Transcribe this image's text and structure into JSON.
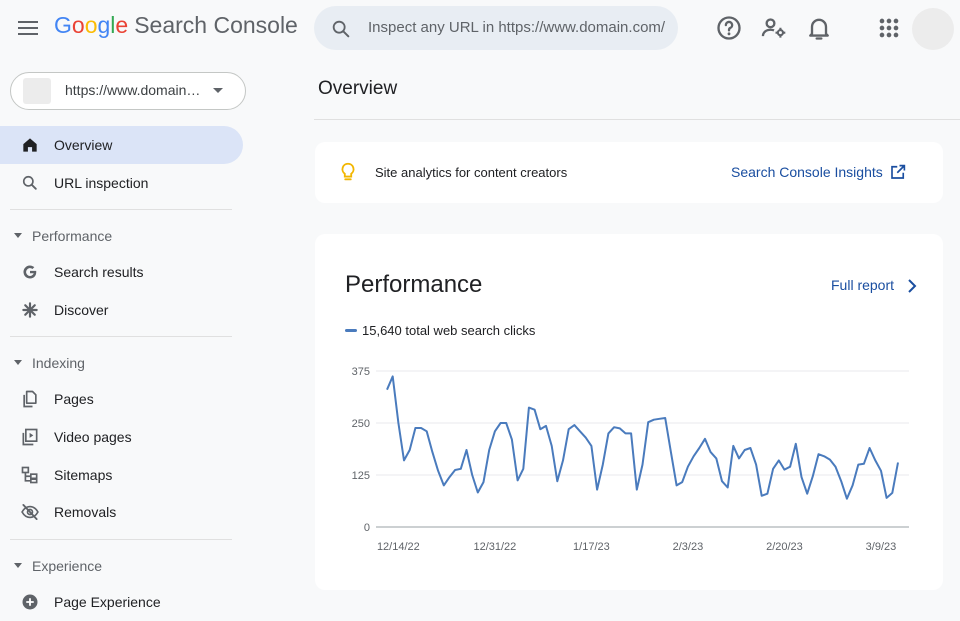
{
  "app": {
    "logo_letters": [
      "G",
      "o",
      "o",
      "g",
      "l",
      "e"
    ],
    "product_name": "Search Console",
    "search_placeholder": "Inspect any URL in https://www.domain.com/"
  },
  "header_icons": [
    "help-icon",
    "manage-users-icon",
    "notifications-icon",
    "apps-grid-icon"
  ],
  "sidebar": {
    "property_url": "https://www.domain…",
    "overview": "Overview",
    "url_inspection": "URL inspection",
    "sections": {
      "performance": {
        "label": "Performance",
        "items": [
          "Search results",
          "Discover"
        ]
      },
      "indexing": {
        "label": "Indexing",
        "items": [
          "Pages",
          "Video pages",
          "Sitemaps",
          "Removals"
        ]
      },
      "experience": {
        "label": "Experience",
        "items": [
          "Page Experience"
        ]
      }
    }
  },
  "main": {
    "title": "Overview",
    "insights_text": "Site analytics for content creators",
    "insights_link": "Search Console Insights",
    "performance_title": "Performance",
    "full_report": "Full report",
    "legend": "15,640 total web search clicks"
  },
  "colors": {
    "line": "#4a7bbd",
    "accent_link": "#1a4ea0",
    "active_nav": "#dbe4f7",
    "bulb": "#f2b600"
  },
  "chart_data": {
    "type": "line",
    "x_start": "12/12/22",
    "x_end": "3/11/23",
    "x_ticks": [
      "12/14/22",
      "12/31/22",
      "1/17/23",
      "2/3/23",
      "2/20/23",
      "3/9/23"
    ],
    "y_ticks": [
      0,
      125,
      250,
      375
    ],
    "ylim": [
      0,
      375
    ],
    "series": [
      {
        "values": [
          330,
          362,
          250,
          160,
          185,
          238,
          238,
          230,
          180,
          135,
          100,
          120,
          137,
          140,
          185,
          125,
          83,
          108,
          185,
          230,
          250,
          250,
          210,
          112,
          140,
          287,
          282,
          235,
          243,
          195,
          110,
          160,
          235,
          245,
          230,
          215,
          195,
          90,
          150,
          225,
          240,
          237,
          225,
          225,
          90,
          150,
          252,
          258,
          260,
          262,
          180,
          100,
          108,
          145,
          170,
          190,
          212,
          180,
          165,
          110,
          95,
          195,
          165,
          185,
          190,
          150,
          75,
          80,
          140,
          160,
          138,
          145,
          200,
          120,
          80,
          122,
          175,
          170,
          162,
          145,
          110,
          68,
          100,
          150,
          152,
          190,
          160,
          135,
          70,
          82,
          155
        ]
      }
    ]
  }
}
